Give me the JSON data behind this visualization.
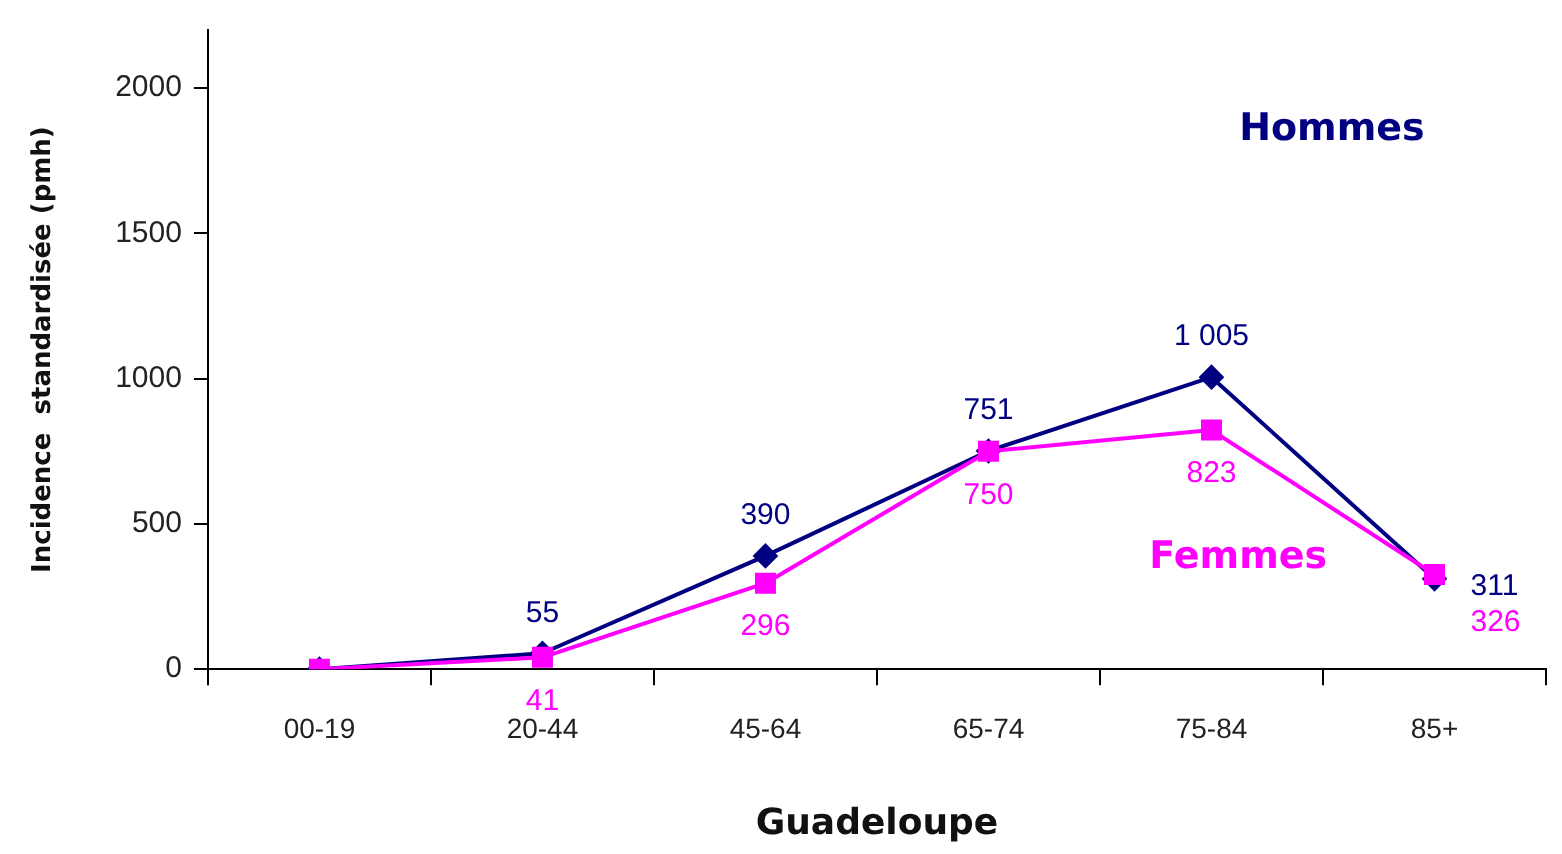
{
  "chart_data": {
    "type": "line",
    "xlabel": "Guadeloupe",
    "ylabel": "Incidence  standardisée (pmh)",
    "categories": [
      "00-19",
      "20-44",
      "45-64",
      "65-74",
      "75-84",
      "85+"
    ],
    "series": [
      {
        "name": "Hommes",
        "color": "#000080",
        "marker": "diamond",
        "values": [
          0,
          55,
          390,
          751,
          1005,
          311
        ],
        "value_labels": [
          null,
          "55",
          "390",
          "751",
          "1 005",
          "311"
        ]
      },
      {
        "name": "Femmes",
        "color": "#ff00ff",
        "marker": "square",
        "values": [
          0,
          41,
          296,
          750,
          823,
          326
        ],
        "value_labels": [
          null,
          "41",
          "296",
          "750",
          "823",
          "326"
        ]
      }
    ],
    "ylim": [
      0,
      2200
    ],
    "yticks": [
      0,
      500,
      1000,
      1500,
      2000
    ],
    "grid": false,
    "legend": false,
    "line_style": "solid"
  }
}
